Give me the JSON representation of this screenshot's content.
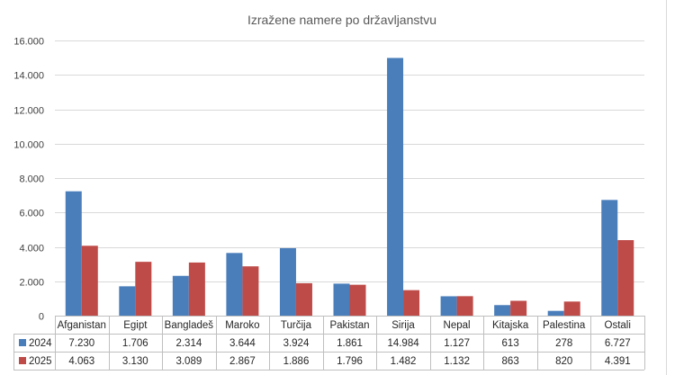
{
  "chart_data": {
    "type": "bar",
    "title": "Izražene namere po državljanstvu",
    "categories": [
      "Afganistan",
      "Egipt",
      "Bangladeš",
      "Maroko",
      "Turčija",
      "Pakistan",
      "Sirija",
      "Nepal",
      "Kitajska",
      "Palestina",
      "Ostali"
    ],
    "series": [
      {
        "name": "2024",
        "color": "#4a7ebb",
        "values": [
          7230,
          1706,
          2314,
          3644,
          3924,
          1861,
          14984,
          1127,
          613,
          278,
          6727
        ],
        "labels": [
          "7.230",
          "1.706",
          "2.314",
          "3.644",
          "3.924",
          "1.861",
          "14.984",
          "1.127",
          "613",
          "278",
          "6.727"
        ]
      },
      {
        "name": "2025",
        "color": "#be4b48",
        "values": [
          4063,
          3130,
          3089,
          2867,
          1886,
          1796,
          1482,
          1132,
          863,
          820,
          4391
        ],
        "labels": [
          "4.063",
          "3.130",
          "3.089",
          "2.867",
          "1.886",
          "1.796",
          "1.482",
          "1.132",
          "863",
          "820",
          "4.391"
        ]
      }
    ],
    "ylim": [
      0,
      16000
    ],
    "yticks": [
      0,
      2000,
      4000,
      6000,
      8000,
      10000,
      12000,
      14000,
      16000
    ],
    "ytick_labels": [
      "0",
      "2.000",
      "4.000",
      "6.000",
      "8.000",
      "10.000",
      "12.000",
      "14.000",
      "16.000"
    ],
    "grid": true,
    "legend": "data-table",
    "xlabel": "",
    "ylabel": ""
  }
}
